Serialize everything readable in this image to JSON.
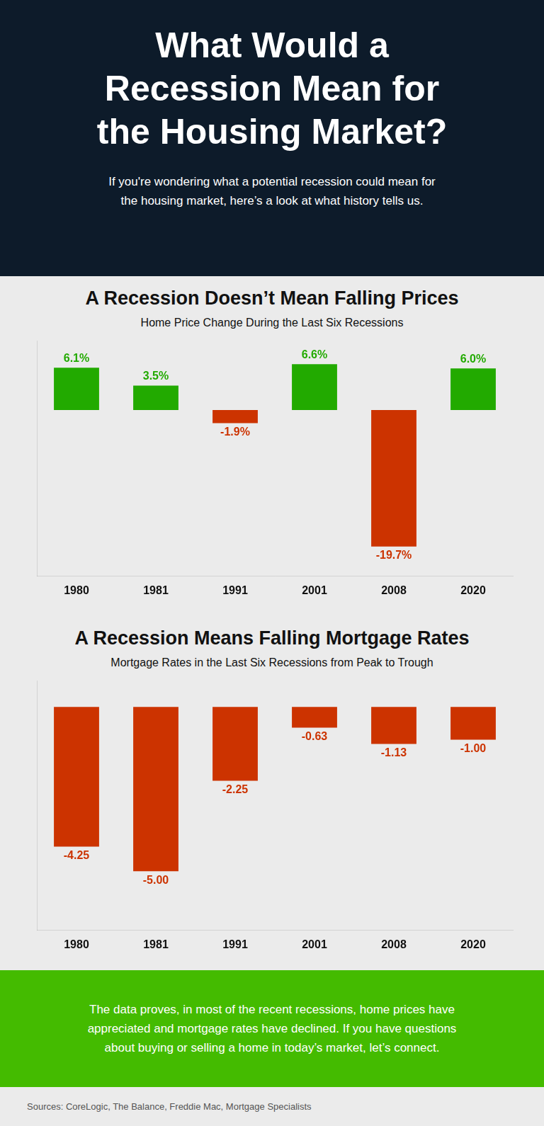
{
  "title": "What Would a\nRecession Mean for\nthe Housing Market?",
  "subtitle": "If you're wondering what a potential recession could mean for\nthe housing market, here’s a look at what history tells us.",
  "annotations": [
    "The data proves, in most of the recent recessions, home prices have\nappreciated and mortgage rates have declined. If you have questions\nabout buying or selling a home in today’s market, let’s connect.",
    "Sources: CoreLogic, The Balance, Freddie Mac, Mortgage Specialists"
  ],
  "chart_data": [
    {
      "type": "bar",
      "title": "A Recession Doesn’t Mean Falling Prices",
      "subtitle": "Home Price Change During the Last Six Recessions",
      "categories": [
        "1980",
        "1981",
        "1991",
        "2001",
        "2008",
        "2020"
      ],
      "values": [
        6.1,
        3.5,
        -1.9,
        6.6,
        -19.7,
        6.0
      ],
      "value_labels": [
        "6.1%",
        "3.5%",
        "-1.9%",
        "6.6%",
        "-19.7%",
        "6.0%"
      ],
      "colors": [
        "#22AA00",
        "#22AA00",
        "#CC3300",
        "#22AA00",
        "#CC3300",
        "#22AA00"
      ],
      "ylim": [
        -24,
        10
      ],
      "grid": false,
      "data_labels": true,
      "tick_labels": "x"
    },
    {
      "type": "bar",
      "title": "A Recession Means Falling Mortgage Rates",
      "subtitle": "Mortgage Rates in the Last Six Recessions from Peak to Trough",
      "categories": [
        "1980",
        "1981",
        "1991",
        "2001",
        "2008",
        "2020"
      ],
      "values": [
        -4.25,
        -5.0,
        -2.25,
        -0.63,
        -1.13,
        -1.0
      ],
      "value_labels": [
        "-4.25",
        "-5.00",
        "-2.25",
        "-0.63",
        "-1.13",
        "-1.00"
      ],
      "color": "#CC3300",
      "ylim": [
        -6.8,
        0.8
      ],
      "grid": false,
      "data_labels": true,
      "tick_labels": "x"
    }
  ]
}
